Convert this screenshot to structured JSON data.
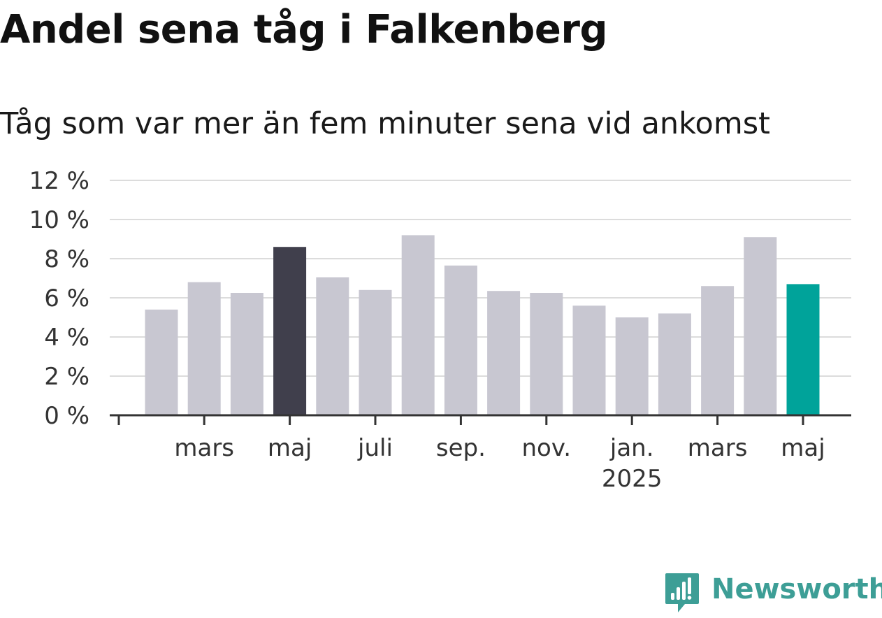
{
  "chart_data": {
    "type": "bar",
    "title": "Andel sena tåg i Falkenberg",
    "subtitle": "Tåg som var mer än fem minuter sena vid ankomst",
    "categories": [
      "2024-02",
      "2024-03",
      "2024-04",
      "2024-05",
      "2024-06",
      "2024-07",
      "2024-08",
      "2024-09",
      "2024-10",
      "2024-11",
      "2024-12",
      "2025-01",
      "2025-02",
      "2025-03",
      "2025-04",
      "2025-05"
    ],
    "values": [
      5.4,
      6.8,
      6.25,
      8.6,
      7.05,
      6.4,
      9.2,
      7.65,
      6.35,
      6.25,
      5.6,
      5.0,
      5.2,
      6.6,
      9.1,
      6.7
    ],
    "ylim": [
      0,
      12
    ],
    "y_ticks": [
      {
        "value": 0,
        "label": "0 %"
      },
      {
        "value": 2,
        "label": "2 %"
      },
      {
        "value": 4,
        "label": "4 %"
      },
      {
        "value": 6,
        "label": "6 %"
      },
      {
        "value": 8,
        "label": "8 %"
      },
      {
        "value": 10,
        "label": "10 %"
      },
      {
        "value": 12,
        "label": "12 %"
      }
    ],
    "x_ticks": [
      {
        "month_index": -1,
        "label": ""
      },
      {
        "month_index": 1,
        "label": "mars"
      },
      {
        "month_index": 3,
        "label": "maj"
      },
      {
        "month_index": 5,
        "label": "juli"
      },
      {
        "month_index": 7,
        "label": "sep."
      },
      {
        "month_index": 9,
        "label": "nov."
      },
      {
        "month_index": 11,
        "label": "jan.",
        "sublabel": "2025"
      },
      {
        "month_index": 13,
        "label": "mars"
      },
      {
        "month_index": 15,
        "label": "maj"
      }
    ],
    "highlight": {
      "index_dark": 3,
      "index_accent": 15
    },
    "grid": true,
    "colors": {
      "bar": "#c8c7d1",
      "bar_highlight_dark": "#403f4c",
      "bar_highlight_accent": "#00a39a",
      "grid": "#dcdcdc",
      "axis": "#333333",
      "text": "#333333"
    }
  },
  "brand": {
    "name": "Newsworthy",
    "color": "#3d9e96"
  }
}
